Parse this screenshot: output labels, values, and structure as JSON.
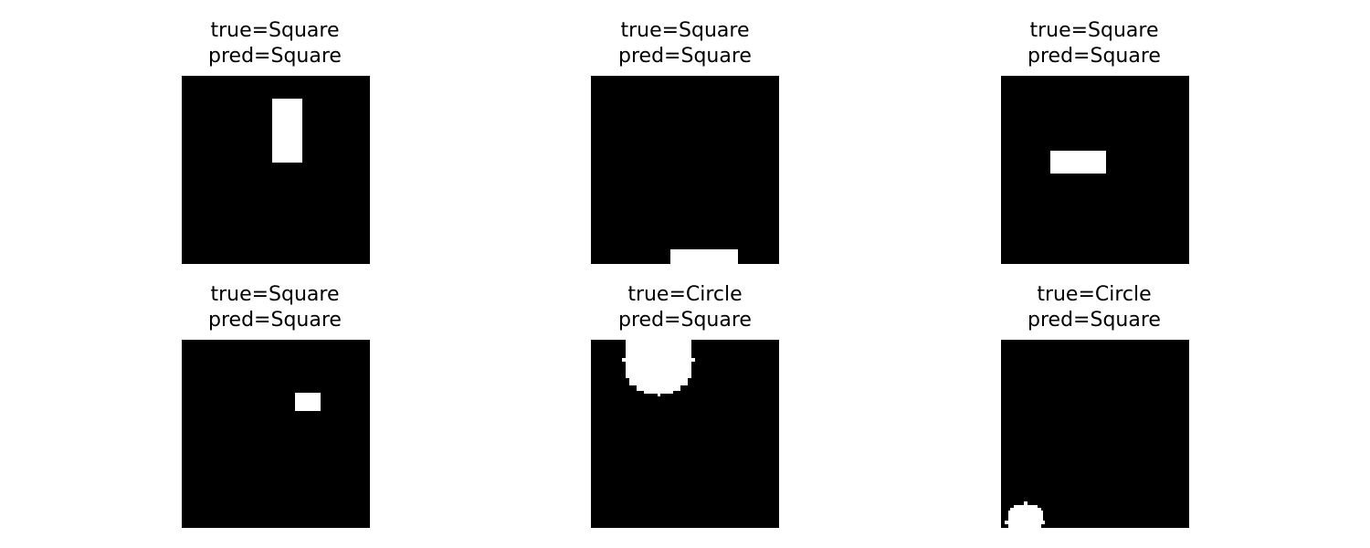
{
  "panels": [
    {
      "true_label": "true=Square",
      "pred_label": "pred=Square"
    },
    {
      "true_label": "true=Square",
      "pred_label": "pred=Square"
    },
    {
      "true_label": "true=Square",
      "pred_label": "pred=Square"
    },
    {
      "true_label": "true=Square",
      "pred_label": "pred=Square"
    },
    {
      "true_label": "true=Circle",
      "pred_label": "pred=Square"
    },
    {
      "true_label": "true=Circle",
      "pred_label": "pred=Square"
    }
  ],
  "colors": {
    "background": "#000000",
    "shape": "#ffffff"
  }
}
